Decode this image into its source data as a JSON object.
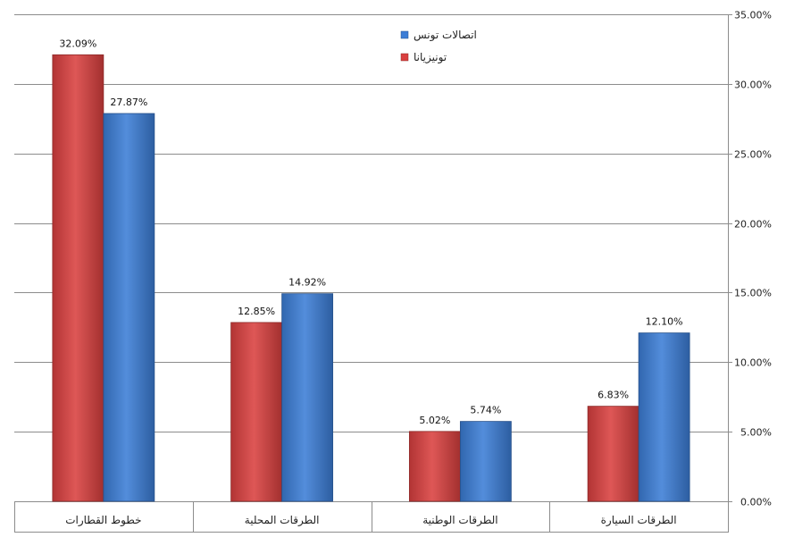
{
  "chart_data": {
    "type": "bar",
    "categories": [
      "خطوط القطارات",
      "الطرقات المحلية",
      "الطرقات الوطنية",
      "الطرقات السيارة"
    ],
    "series": [
      {
        "name": "تونيزيانا",
        "values": [
          32.09,
          12.85,
          5.02,
          6.83
        ],
        "labels": [
          "32.09%",
          "12.85%",
          "5.02%",
          "6.83%"
        ],
        "color": "#d9403f"
      },
      {
        "name": "اتصالات تونس",
        "values": [
          27.87,
          14.92,
          5.74,
          12.1
        ],
        "labels": [
          "27.87%",
          "14.92%",
          "5.74%",
          "12.10%"
        ],
        "color": "#3c7dd6"
      }
    ],
    "ylim": [
      0,
      35
    ],
    "yticks": [
      0,
      5,
      10,
      15,
      20,
      25,
      30,
      35
    ],
    "ytick_labels": [
      "0.00%",
      "5.00%",
      "10.00%",
      "15.00%",
      "20.00%",
      "25.00%",
      "30.00%",
      "35.00%"
    ],
    "y_axis_side": "right",
    "grid": true,
    "legend_placement": "top-center",
    "legend_order": [
      "اتصالات تونس",
      "تونيزيانا"
    ]
  }
}
